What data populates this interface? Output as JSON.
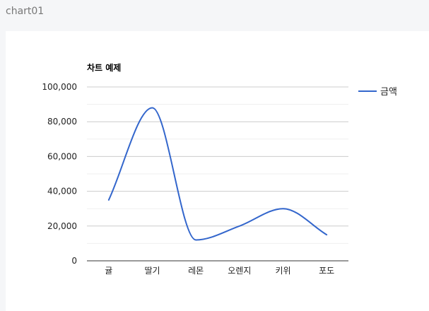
{
  "page": {
    "header_title": "chart01"
  },
  "chart_data": {
    "type": "line",
    "title": "차트 예제",
    "categories": [
      "귤",
      "딸기",
      "레몬",
      "오렌지",
      "키위",
      "포도"
    ],
    "series": [
      {
        "name": "금액",
        "values": [
          35000,
          88000,
          12000,
          20000,
          30000,
          15000
        ],
        "color": "#3366cc"
      }
    ],
    "ylim": [
      0,
      100000
    ],
    "yticks": [
      0,
      20000,
      40000,
      60000,
      80000,
      100000
    ],
    "ytick_labels": [
      "0",
      "20,000",
      "40,000",
      "60,000",
      "80,000",
      "100,000"
    ],
    "smooth": true,
    "grid": true,
    "legend_position": "right"
  }
}
